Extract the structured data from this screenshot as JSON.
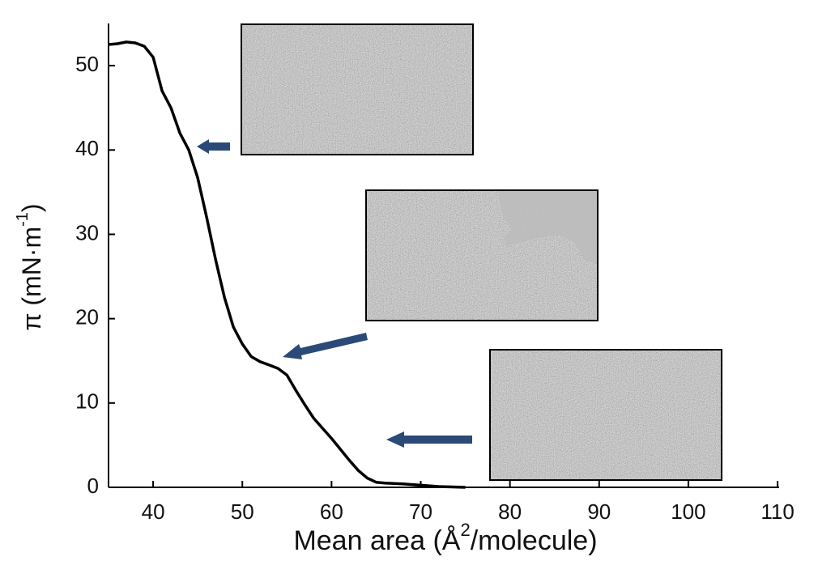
{
  "chart_data": {
    "type": "line",
    "xlabel": [
      "Mean area (Å",
      "2",
      "/molecule)"
    ],
    "ylabel": [
      "π (mN·m",
      "-1",
      ")"
    ],
    "x": [
      35,
      36,
      37,
      38,
      39,
      40,
      41,
      42,
      43,
      44,
      45,
      46,
      47,
      48,
      49,
      50,
      51,
      52,
      53,
      54,
      55,
      56,
      57,
      58,
      59,
      60,
      61,
      62,
      63,
      64,
      65,
      66,
      68,
      72,
      75
    ],
    "values": [
      52.5,
      52.6,
      52.8,
      52.7,
      52.3,
      51,
      47,
      45,
      42,
      40,
      36.7,
      32,
      27,
      22.5,
      19,
      17,
      15.5,
      14.9,
      14.5,
      14.1,
      13.3,
      11.5,
      9.8,
      8.2,
      7,
      5.8,
      4.5,
      3.2,
      2,
      1.1,
      0.6,
      0.5,
      0.4,
      0.1,
      0
    ],
    "color": "#000000",
    "xlim": [
      35,
      110
    ],
    "xticks": [
      40,
      50,
      60,
      70,
      80,
      90,
      100,
      110
    ],
    "ylim": [
      0,
      55
    ],
    "yticks": [
      0,
      10,
      20,
      30,
      40,
      50
    ]
  }
}
